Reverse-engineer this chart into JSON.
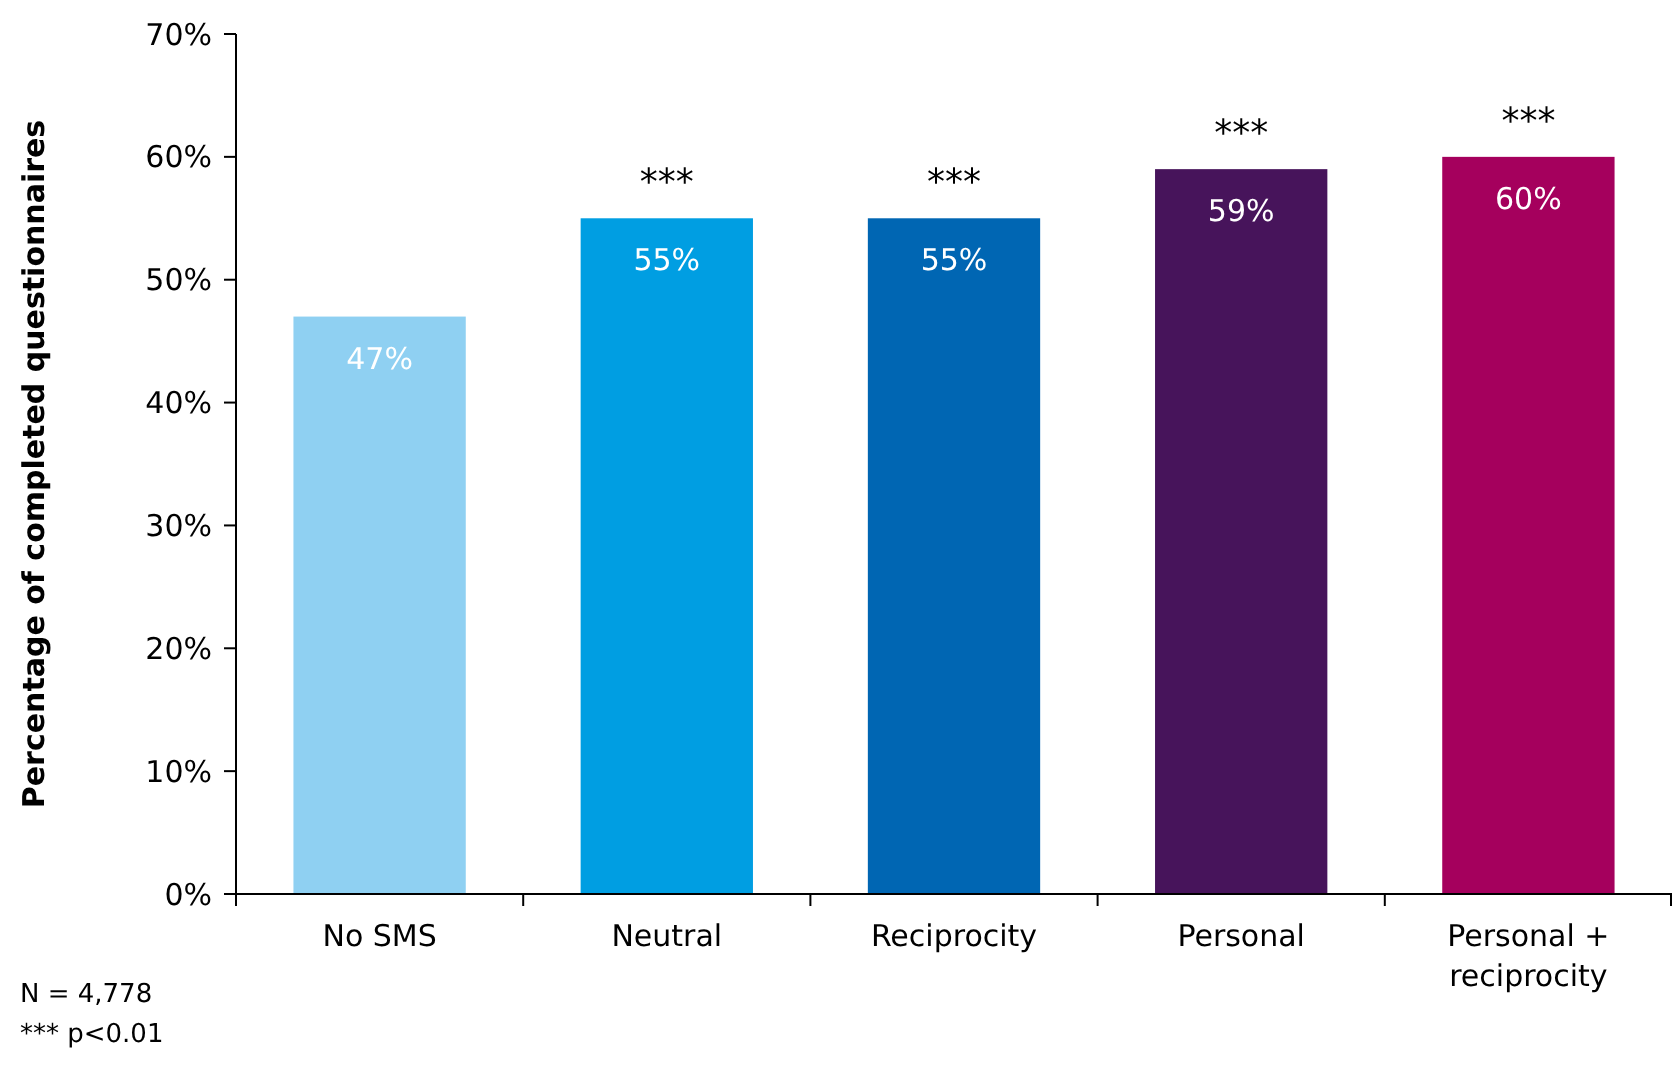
{
  "chart_data": {
    "type": "bar",
    "ylabel": "Percentage of completed questionnaires",
    "categories": [
      "No SMS",
      "Neutral",
      "Reciprocity",
      "Personal",
      "Personal + reciprocity"
    ],
    "values": [
      47,
      55,
      55,
      59,
      60
    ],
    "colors": [
      "#8fd0f2",
      "#009ee2",
      "#0066b3",
      "#47145b",
      "#a5005d"
    ],
    "value_labels": [
      "47%",
      "55%",
      "55%",
      "59%",
      "60%"
    ],
    "ylim": [
      0,
      70
    ],
    "yticks": [
      {
        "value": 0,
        "label": "0%"
      },
      {
        "value": 10,
        "label": "10%"
      },
      {
        "value": 20,
        "label": "20%"
      },
      {
        "value": 30,
        "label": "30%"
      },
      {
        "value": 40,
        "label": "40%"
      },
      {
        "value": 50,
        "label": "50%"
      },
      {
        "value": 60,
        "label": "60%"
      },
      {
        "value": 70,
        "label": "70%"
      }
    ],
    "grid": false,
    "annotations": [
      {
        "text": "***",
        "x": "Neutral",
        "y": 55
      },
      {
        "text": "***",
        "x": "Reciprocity",
        "y": 55
      },
      {
        "text": "***",
        "x": "Personal",
        "y": 59
      },
      {
        "text": "***",
        "x": "Personal + reciprocity",
        "y": 60
      },
      "N = 4,778",
      "*** p<0.01"
    ]
  }
}
